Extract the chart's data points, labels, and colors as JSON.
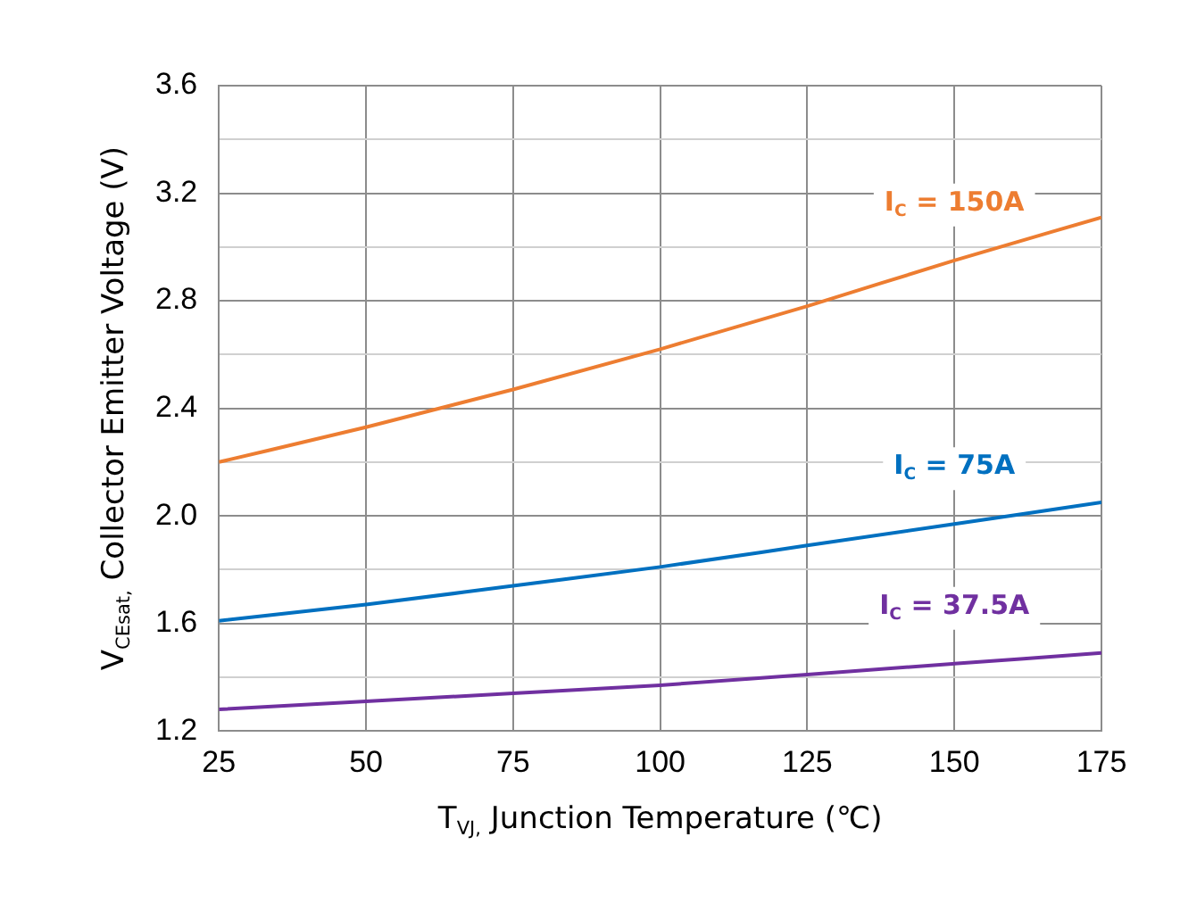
{
  "chart_data": {
    "type": "line",
    "xlabel": "T$_{VJ,}$ Junction Temperature (℃)",
    "ylabel": "V$_{CEsat,}$ Collector Emitter Voltage (V)",
    "x": [
      25,
      50,
      75,
      100,
      125,
      150,
      175
    ],
    "series": [
      {
        "name": "I$_{C}$ = 150A",
        "color": "#ed7d31",
        "values": [
          2.2,
          2.33,
          2.47,
          2.62,
          2.78,
          2.95,
          3.11
        ]
      },
      {
        "name": "I$_{C}$ = 75A",
        "color": "#0070c0",
        "values": [
          1.61,
          1.67,
          1.74,
          1.81,
          1.89,
          1.97,
          2.05
        ]
      },
      {
        "name": "I$_{C}$ = 37.5A",
        "color": "#7030a0",
        "values": [
          1.28,
          1.31,
          1.34,
          1.37,
          1.41,
          1.45,
          1.49
        ]
      }
    ],
    "xlim": [
      25,
      175
    ],
    "xticks": [
      25,
      50,
      75,
      100,
      125,
      150,
      175
    ],
    "ylim": [
      1.2,
      3.6
    ],
    "yticks": [
      1.2,
      {
        "value": 1.4,
        "label": null
      },
      1.6,
      {
        "value": 1.8,
        "label": null
      },
      {
        "value": 2.0,
        "label": "2.0"
      },
      {
        "value": 2.2,
        "label": null
      },
      2.4,
      {
        "value": 2.6,
        "label": null
      },
      2.8,
      {
        "value": 3.0,
        "label": null
      },
      3.2,
      {
        "value": 3.4,
        "label": null
      },
      3.6
    ],
    "grid": true,
    "legend": false,
    "marker": "none",
    "line_style": "solid"
  }
}
